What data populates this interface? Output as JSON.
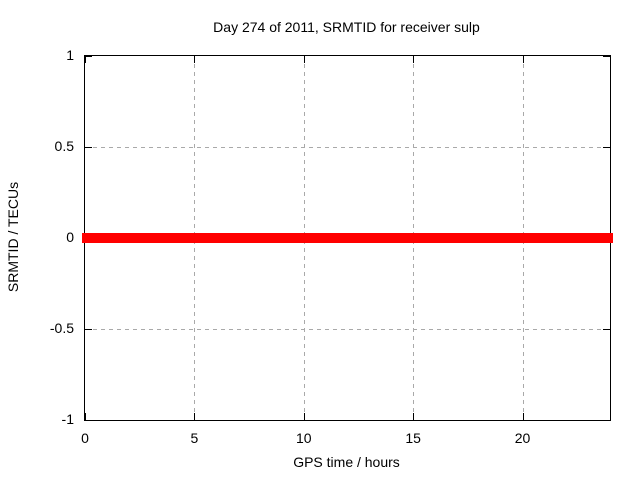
{
  "chart_data": {
    "type": "line",
    "title": "Day 274 of 2011, SRMTID for receiver sulp",
    "xlabel": "GPS time / hours",
    "ylabel": "SRMTID / TECUs",
    "xlim": [
      0,
      24
    ],
    "ylim": [
      -1,
      1
    ],
    "x_ticks": [
      0,
      5,
      10,
      15,
      20
    ],
    "x_tick_labels": [
      "0",
      "5",
      "10",
      "15",
      "20"
    ],
    "y_ticks": [
      1,
      0.5,
      0,
      -0.5,
      -1
    ],
    "y_tick_labels": [
      "1",
      "0.5",
      "0",
      "-0.5",
      "-1"
    ],
    "grid": true,
    "legend": "none",
    "colors": {
      "series": "#ff0000",
      "grid": "#a9a9a9",
      "border": "#000000",
      "text": "#000000",
      "background": "#ffffff"
    },
    "series": [
      {
        "name": "SRMTID",
        "color": "#ff0000",
        "x": [
          0,
          24
        ],
        "y": [
          0,
          0
        ],
        "note": "constant zero across entire day, thick line"
      }
    ]
  }
}
